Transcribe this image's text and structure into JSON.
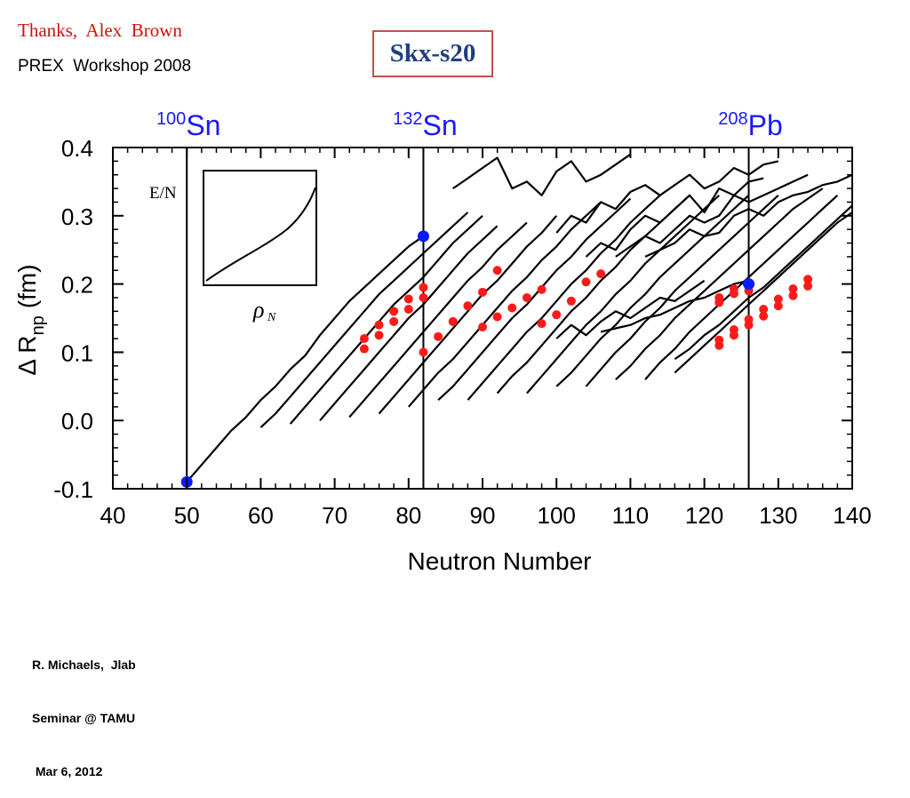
{
  "header": {
    "thanks": "Thanks,  Alex  Brown",
    "workshop": "PREX  Workshop 2008",
    "title": "Skx-s20"
  },
  "footer": {
    "lines": [
      "R. Michaels,  Jlab",
      "Seminar @ TAMU",
      " Mar 6, 2012"
    ]
  },
  "chart_data": {
    "type": "line",
    "xlabel": "Neutron Number",
    "ylabel_main": "Δ R",
    "ylabel_sub": "np",
    "ylabel_unit": "(fm)",
    "xlim": [
      40,
      140
    ],
    "ylim": [
      -0.1,
      0.4
    ],
    "x_ticks": [
      40,
      50,
      60,
      70,
      80,
      90,
      100,
      110,
      120,
      130,
      140
    ],
    "y_ticks": [
      {
        "value": -0.1,
        "label": "-0.1"
      },
      {
        "value": 0.0,
        "label": "0.0"
      },
      {
        "value": 0.1,
        "label": "0.1"
      },
      {
        "value": 0.2,
        "label": "0.2"
      },
      {
        "value": 0.3,
        "label": "0.3"
      },
      {
        "value": 0.4,
        "label": "0.4"
      }
    ],
    "grid": false,
    "colors": {
      "lines": "#000000",
      "experiment": "#ff1a1a",
      "reference": "#0a1aff",
      "labels": "#1a1aff"
    },
    "vertical_markers": [
      {
        "x": 50,
        "mass": "100",
        "symbol": "Sn"
      },
      {
        "x": 82,
        "mass": "132",
        "symbol": "Sn"
      },
      {
        "x": 126,
        "mass": "208",
        "symbol": "Pb"
      }
    ],
    "reference_points": [
      {
        "x": 50,
        "y": -0.09
      },
      {
        "x": 82,
        "y": 0.27
      },
      {
        "x": 126,
        "y": 0.2
      }
    ],
    "inset": {
      "ylabel": "E/N",
      "xlabel_symbol": "ρ",
      "xlabel_sub": "N"
    },
    "series": [
      {
        "x": [
          50,
          52,
          54,
          56,
          58,
          60,
          62,
          64,
          66,
          68,
          70,
          72,
          74,
          76,
          78,
          80,
          82
        ],
        "y": [
          -0.09,
          -0.065,
          -0.04,
          -0.015,
          0.005,
          0.03,
          0.05,
          0.075,
          0.095,
          0.125,
          0.15,
          0.175,
          0.195,
          0.215,
          0.235,
          0.255,
          0.27
        ]
      },
      {
        "x": [
          60,
          62,
          64,
          66,
          68,
          70,
          72,
          74,
          76,
          78,
          80,
          82,
          84,
          86,
          88
        ],
        "y": [
          -0.01,
          0.01,
          0.035,
          0.06,
          0.085,
          0.11,
          0.135,
          0.16,
          0.185,
          0.205,
          0.225,
          0.245,
          0.265,
          0.285,
          0.305
        ]
      },
      {
        "x": [
          64,
          66,
          68,
          70,
          72,
          74,
          76,
          78,
          80,
          82,
          84,
          86,
          88,
          90
        ],
        "y": [
          -0.005,
          0.02,
          0.045,
          0.07,
          0.095,
          0.12,
          0.145,
          0.17,
          0.19,
          0.21,
          0.235,
          0.26,
          0.28,
          0.3
        ]
      },
      {
        "x": [
          68,
          70,
          72,
          74,
          76,
          78,
          80,
          82,
          84,
          86,
          88,
          90,
          92
        ],
        "y": [
          0.0,
          0.025,
          0.05,
          0.075,
          0.1,
          0.125,
          0.15,
          0.17,
          0.195,
          0.22,
          0.245,
          0.265,
          0.285
        ]
      },
      {
        "x": [
          72,
          74,
          76,
          78,
          80,
          82,
          84,
          86,
          88,
          90,
          92,
          94,
          96
        ],
        "y": [
          0.005,
          0.03,
          0.055,
          0.08,
          0.105,
          0.13,
          0.155,
          0.18,
          0.205,
          0.225,
          0.25,
          0.27,
          0.29
        ]
      },
      {
        "x": [
          76,
          78,
          80,
          82,
          84,
          86,
          88,
          90,
          92,
          94,
          96,
          98,
          100
        ],
        "y": [
          0.01,
          0.035,
          0.06,
          0.085,
          0.11,
          0.135,
          0.16,
          0.185,
          0.205,
          0.23,
          0.255,
          0.275,
          0.3
        ]
      },
      {
        "x": [
          80,
          82,
          84,
          86,
          88,
          90,
          92,
          94,
          96,
          98,
          100,
          102,
          104,
          106
        ],
        "y": [
          0.02,
          0.045,
          0.07,
          0.09,
          0.115,
          0.14,
          0.165,
          0.19,
          0.21,
          0.235,
          0.255,
          0.28,
          0.3,
          0.32
        ]
      },
      {
        "x": [
          84,
          86,
          88,
          90,
          92,
          94,
          96,
          98,
          100,
          102,
          104,
          106,
          108,
          110
        ],
        "y": [
          0.03,
          0.05,
          0.075,
          0.1,
          0.125,
          0.15,
          0.17,
          0.195,
          0.22,
          0.24,
          0.265,
          0.285,
          0.305,
          0.325
        ]
      },
      {
        "x": [
          88,
          90,
          92,
          94,
          96,
          98,
          100,
          102,
          104,
          106,
          108,
          110,
          112,
          114
        ],
        "y": [
          0.03,
          0.055,
          0.08,
          0.105,
          0.13,
          0.15,
          0.175,
          0.2,
          0.22,
          0.245,
          0.265,
          0.29,
          0.31,
          0.33
        ]
      },
      {
        "x": [
          92,
          94,
          96,
          98,
          100,
          102,
          104,
          106,
          108,
          110,
          112,
          114,
          116,
          118
        ],
        "y": [
          0.04,
          0.065,
          0.085,
          0.11,
          0.135,
          0.16,
          0.18,
          0.205,
          0.225,
          0.25,
          0.27,
          0.29,
          0.31,
          0.33
        ]
      },
      {
        "x": [
          96,
          98,
          100,
          102,
          104,
          106,
          108,
          110,
          112,
          114,
          116,
          118,
          120,
          122
        ],
        "y": [
          0.04,
          0.065,
          0.09,
          0.115,
          0.14,
          0.16,
          0.185,
          0.205,
          0.23,
          0.25,
          0.27,
          0.29,
          0.31,
          0.33
        ]
      },
      {
        "x": [
          100,
          102,
          104,
          106,
          108,
          110,
          112,
          114,
          116,
          118,
          120,
          122,
          124,
          126
        ],
        "y": [
          0.05,
          0.07,
          0.095,
          0.12,
          0.14,
          0.165,
          0.185,
          0.21,
          0.23,
          0.25,
          0.27,
          0.29,
          0.31,
          0.33
        ]
      },
      {
        "x": [
          104,
          106,
          108,
          110,
          112,
          114,
          116,
          118,
          120,
          122,
          124,
          126,
          128,
          130
        ],
        "y": [
          0.05,
          0.075,
          0.1,
          0.12,
          0.145,
          0.165,
          0.19,
          0.21,
          0.23,
          0.25,
          0.27,
          0.29,
          0.31,
          0.33
        ]
      },
      {
        "x": [
          108,
          110,
          112,
          114,
          116,
          118,
          120,
          122,
          124,
          126,
          128,
          130,
          132,
          134,
          136
        ],
        "y": [
          0.06,
          0.08,
          0.105,
          0.125,
          0.15,
          0.17,
          0.19,
          0.21,
          0.23,
          0.25,
          0.27,
          0.29,
          0.31,
          0.325,
          0.34
        ]
      },
      {
        "x": [
          112,
          114,
          116,
          118,
          120,
          122,
          124,
          126,
          128,
          130,
          132,
          134,
          136,
          138
        ],
        "y": [
          0.06,
          0.085,
          0.105,
          0.13,
          0.15,
          0.17,
          0.19,
          0.21,
          0.23,
          0.25,
          0.27,
          0.29,
          0.31,
          0.33
        ]
      },
      {
        "x": [
          116,
          118,
          120,
          122,
          124,
          126,
          128,
          130,
          132,
          134,
          136,
          138,
          140
        ],
        "y": [
          0.07,
          0.09,
          0.11,
          0.13,
          0.15,
          0.17,
          0.19,
          0.21,
          0.23,
          0.25,
          0.27,
          0.29,
          0.305
        ]
      },
      {
        "x": [
          116,
          118,
          120,
          122,
          124,
          126,
          128,
          130,
          132,
          134,
          136,
          138,
          140
        ],
        "y": [
          0.09,
          0.105,
          0.125,
          0.14,
          0.16,
          0.18,
          0.195,
          0.215,
          0.235,
          0.255,
          0.275,
          0.295,
          0.315
        ]
      },
      {
        "x": [
          86,
          88,
          90,
          92,
          94,
          96,
          98,
          100,
          102,
          104,
          106,
          108,
          110
        ],
        "y": [
          0.34,
          0.355,
          0.37,
          0.385,
          0.34,
          0.35,
          0.33,
          0.365,
          0.38,
          0.35,
          0.36,
          0.375,
          0.39
        ]
      },
      {
        "x": [
          100,
          102,
          104,
          106,
          108,
          110,
          112,
          114,
          116,
          118,
          120,
          122,
          124,
          126,
          128,
          130
        ],
        "y": [
          0.275,
          0.3,
          0.29,
          0.32,
          0.31,
          0.335,
          0.345,
          0.33,
          0.345,
          0.36,
          0.34,
          0.35,
          0.37,
          0.36,
          0.375,
          0.38
        ]
      },
      {
        "x": [
          104,
          106,
          108,
          110,
          112,
          114,
          116,
          118,
          120,
          122,
          124,
          126,
          128
        ],
        "y": [
          0.24,
          0.26,
          0.25,
          0.28,
          0.3,
          0.29,
          0.31,
          0.33,
          0.305,
          0.34,
          0.33,
          0.35,
          0.355
        ]
      },
      {
        "x": [
          108,
          110,
          112,
          114,
          116,
          118,
          120,
          122,
          124,
          126,
          128,
          130,
          132,
          134
        ],
        "y": [
          0.24,
          0.255,
          0.27,
          0.26,
          0.28,
          0.3,
          0.29,
          0.3,
          0.33,
          0.32,
          0.33,
          0.34,
          0.35,
          0.36
        ]
      },
      {
        "x": [
          112,
          114,
          116,
          118,
          120,
          122,
          124,
          126,
          128,
          130,
          132,
          134,
          136,
          138,
          140
        ],
        "y": [
          0.24,
          0.25,
          0.26,
          0.28,
          0.27,
          0.275,
          0.3,
          0.31,
          0.3,
          0.32,
          0.33,
          0.335,
          0.345,
          0.35,
          0.36
        ]
      },
      {
        "x": [
          100,
          102,
          104,
          106,
          108,
          110,
          112,
          114,
          116,
          118,
          120
        ],
        "y": [
          0.12,
          0.14,
          0.125,
          0.145,
          0.16,
          0.15,
          0.165,
          0.18,
          0.175,
          0.19,
          0.205
        ]
      },
      {
        "x": [
          106,
          108,
          110,
          112,
          114,
          116,
          118,
          120,
          122,
          124,
          126
        ],
        "y": [
          0.13,
          0.135,
          0.14,
          0.15,
          0.155,
          0.165,
          0.175,
          0.18,
          0.19,
          0.2,
          0.205
        ]
      }
    ],
    "experiment": {
      "x": [
        74,
        74,
        76,
        76,
        78,
        78,
        80,
        80,
        82,
        82,
        82,
        84,
        86,
        88,
        90,
        90,
        92,
        92,
        94,
        96,
        98,
        98,
        100,
        102,
        104,
        106,
        122,
        122,
        122,
        122,
        124,
        124,
        124,
        124,
        126,
        126,
        126,
        128,
        128,
        130,
        130,
        132,
        132,
        134,
        134
      ],
      "y": [
        0.12,
        0.105,
        0.14,
        0.125,
        0.16,
        0.145,
        0.178,
        0.163,
        0.195,
        0.18,
        0.1,
        0.123,
        0.145,
        0.168,
        0.188,
        0.137,
        0.22,
        0.152,
        0.165,
        0.18,
        0.192,
        0.142,
        0.155,
        0.175,
        0.203,
        0.215,
        0.18,
        0.173,
        0.118,
        0.11,
        0.193,
        0.186,
        0.133,
        0.125,
        0.19,
        0.148,
        0.14,
        0.163,
        0.153,
        0.178,
        0.168,
        0.193,
        0.183,
        0.207,
        0.197
      ]
    }
  }
}
